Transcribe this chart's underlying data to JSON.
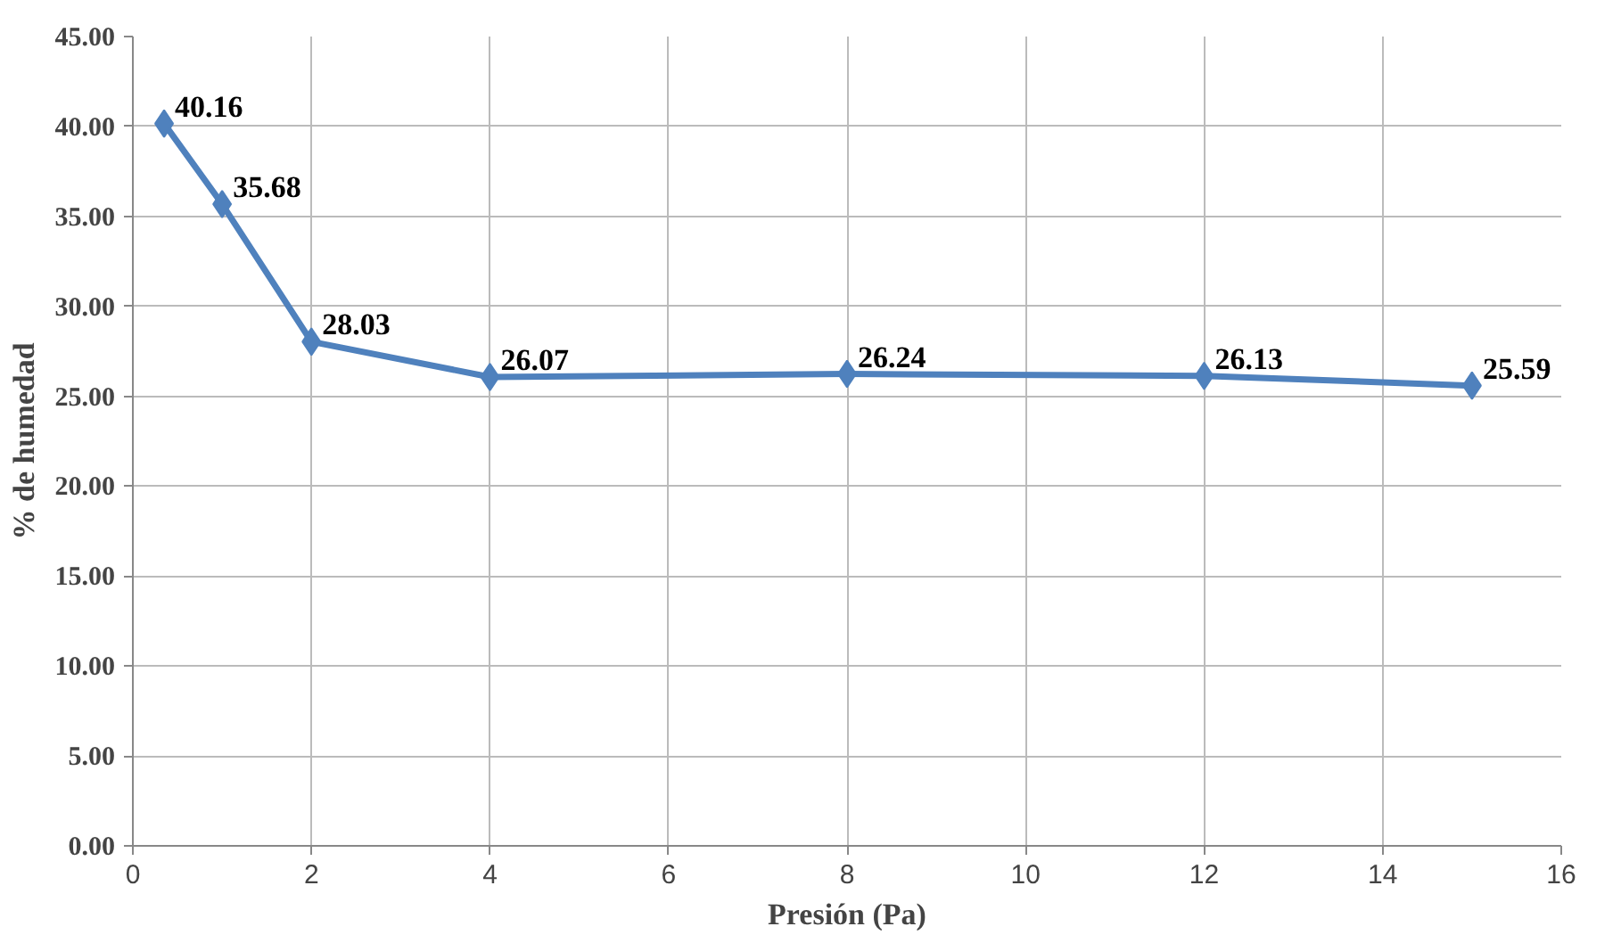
{
  "chart_data": {
    "type": "line",
    "xlabel": "Presión (Pa)",
    "ylabel": "% de humedad",
    "x": [
      0.35,
      1,
      2,
      4,
      8,
      12,
      15
    ],
    "series": [
      {
        "color": "#4f81bd",
        "values": [
          40.16,
          35.68,
          28.03,
          26.07,
          26.24,
          26.13,
          25.59
        ],
        "value_labels": [
          "40.16",
          "35.68",
          "28.03",
          "26.07",
          "26.24",
          "26.13",
          "25.59"
        ]
      }
    ],
    "xlim": [
      0,
      16
    ],
    "xticks": [
      0,
      2,
      4,
      6,
      8,
      10,
      12,
      14,
      16
    ],
    "ylim": [
      0,
      45
    ],
    "yticks": [
      {
        "value": 0,
        "label": "0.00"
      },
      {
        "value": 5,
        "label": "5.00"
      },
      {
        "value": 10,
        "label": "10.00"
      },
      {
        "value": 15,
        "label": "15.00"
      },
      {
        "value": 20,
        "label": "20.00"
      },
      {
        "value": 25,
        "label": "25.00"
      },
      {
        "value": 30,
        "label": "30.00"
      },
      {
        "value": 35,
        "label": "35.00"
      },
      {
        "value": 40,
        "label": "40.00"
      },
      {
        "value": 45,
        "label": "45.00"
      }
    ],
    "grid": true,
    "marker": "diamond",
    "line_style": "solid"
  }
}
